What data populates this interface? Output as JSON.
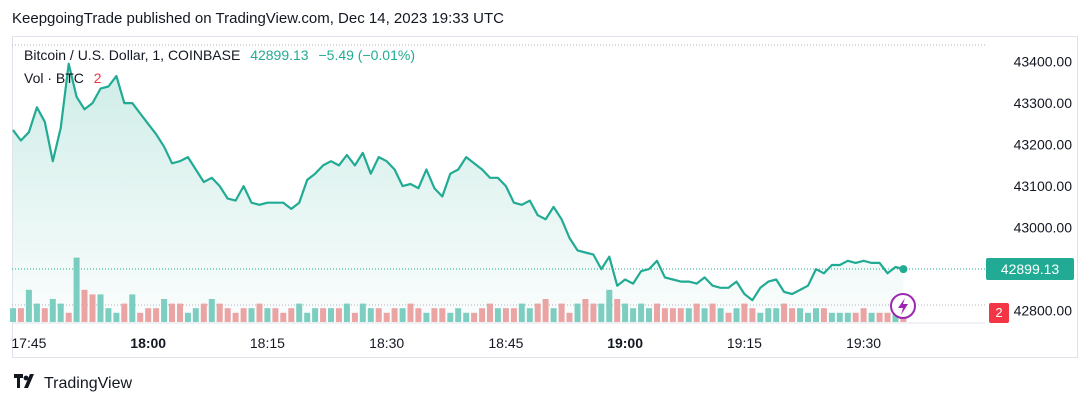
{
  "header": {
    "published": "KeepgoingTrade published on TradingView.com, Dec 14, 2023 19:33 UTC"
  },
  "legend": {
    "symbol": "Bitcoin / U.S. Dollar, 1, COINBASE",
    "last": "42899.13",
    "change": "−5.49 (−0.01%)",
    "volume_label": "Vol · BTC",
    "volume_value": "2"
  },
  "price_tag": "42899.13",
  "volume_tag": "2",
  "footer": {
    "brand": "TradingView",
    "logo": "tradingview-logo-icon"
  },
  "colors": {
    "line": "#22ab94",
    "up_vol": "#7fcfc2",
    "down_vol": "#f0a4a4",
    "flash": "#9c27b0"
  },
  "chart_data": {
    "type": "line",
    "title": "Bitcoin / U.S. Dollar, 1, COINBASE",
    "y_ticks": [
      "43400.00",
      "43300.00",
      "43200.00",
      "43100.00",
      "43000.00",
      "42800.00"
    ],
    "x_ticks": [
      {
        "label": "17:45",
        "bold": false,
        "minute": 0
      },
      {
        "label": "18:00",
        "bold": true,
        "minute": 15
      },
      {
        "label": "18:15",
        "bold": false,
        "minute": 30
      },
      {
        "label": "18:30",
        "bold": false,
        "minute": 45
      },
      {
        "label": "18:45",
        "bold": false,
        "minute": 60
      },
      {
        "label": "19:00",
        "bold": true,
        "minute": 75
      },
      {
        "label": "19:15",
        "bold": false,
        "minute": 90
      },
      {
        "label": "19:30",
        "bold": false,
        "minute": 105
      }
    ],
    "ylim": [
      42775,
      43440
    ],
    "x_start": "17:43",
    "price": [
      43235,
      43210,
      43230,
      43290,
      43255,
      43160,
      43240,
      43395,
      43315,
      43285,
      43300,
      43335,
      43340,
      43365,
      43300,
      43300,
      43275,
      43250,
      43225,
      43195,
      43155,
      43160,
      43170,
      43140,
      43110,
      43120,
      43100,
      43070,
      43065,
      43100,
      43060,
      43055,
      43060,
      43060,
      43060,
      43045,
      43060,
      43115,
      43130,
      43150,
      43160,
      43150,
      43175,
      43150,
      43180,
      43130,
      43170,
      43160,
      43140,
      43100,
      43105,
      43095,
      43140,
      43095,
      43075,
      43130,
      43140,
      43170,
      43155,
      43140,
      43120,
      43120,
      43100,
      43060,
      43055,
      43065,
      43030,
      43020,
      43050,
      43020,
      42975,
      42945,
      42940,
      42935,
      42900,
      42930,
      42860,
      42875,
      42865,
      42895,
      42900,
      42920,
      42880,
      42875,
      42870,
      42870,
      42865,
      42880,
      42860,
      42855,
      42855,
      42870,
      42840,
      42825,
      42855,
      42870,
      42875,
      42845,
      42840,
      42850,
      42860,
      42900,
      42890,
      42910,
      42910,
      42920,
      42915,
      42920,
      42915,
      42915,
      42890,
      42905,
      42900
    ],
    "volume": [
      6,
      6,
      14,
      8,
      6,
      10,
      8,
      4,
      28,
      14,
      12,
      12,
      6,
      4,
      8,
      12,
      4,
      6,
      6,
      10,
      8,
      8,
      4,
      6,
      8,
      10,
      8,
      6,
      4,
      6,
      6,
      8,
      6,
      6,
      4,
      6,
      8,
      4,
      6,
      6,
      6,
      6,
      8,
      4,
      8,
      6,
      6,
      4,
      6,
      6,
      8,
      6,
      4,
      6,
      6,
      4,
      6,
      4,
      4,
      6,
      8,
      6,
      6,
      6,
      8,
      6,
      8,
      10,
      6,
      8,
      4,
      8,
      10,
      8,
      8,
      14,
      10,
      8,
      6,
      8,
      6,
      8,
      6,
      6,
      6,
      6,
      8,
      6,
      8,
      6,
      4,
      6,
      8,
      6,
      4,
      6,
      6,
      8,
      6,
      6,
      4,
      6,
      6,
      4,
      4,
      4,
      4,
      6,
      4,
      4,
      4,
      8,
      2
    ],
    "volume_up": [
      1,
      0,
      1,
      1,
      0,
      1,
      1,
      0,
      1,
      0,
      0,
      1,
      1,
      1,
      0,
      1,
      0,
      0,
      0,
      1,
      0,
      0,
      1,
      1,
      0,
      1,
      0,
      0,
      0,
      0,
      1,
      0,
      1,
      0,
      0,
      0,
      1,
      1,
      1,
      0,
      1,
      0,
      1,
      0,
      1,
      1,
      0,
      0,
      0,
      1,
      0,
      0,
      1,
      0,
      0,
      1,
      1,
      1,
      0,
      0,
      0,
      1,
      0,
      0,
      1,
      1,
      0,
      0,
      1,
      0,
      0,
      1,
      0,
      0,
      1,
      1,
      0,
      1,
      1,
      1,
      1,
      0,
      0,
      0,
      0,
      1,
      0,
      1,
      0,
      1,
      0,
      1,
      0,
      0,
      1,
      1,
      1,
      0,
      0,
      1,
      1,
      1,
      0,
      1,
      1,
      1,
      0,
      0,
      1,
      0,
      0,
      1,
      0
    ]
  }
}
